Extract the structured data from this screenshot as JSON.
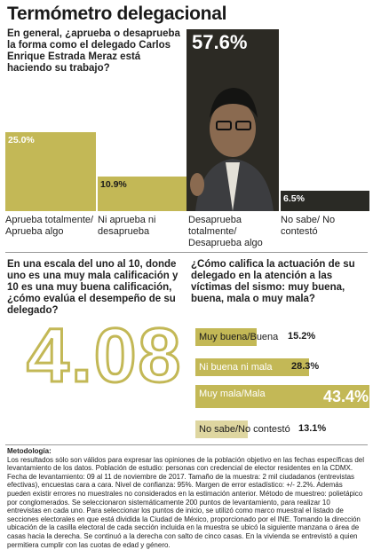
{
  "title": "Termómetro delegacional",
  "question1": "En general, ¿aprueba o desaprueba la forma como el delegado Carlos Enrique Estrada Meraz está haciendo su trabajo?",
  "question2": "En una escala del uno al 10, donde uno es una muy mala calificación y 10 es una muy buena calificación, ¿cómo evalúa el desempeño de su delegado?",
  "score": "4.08",
  "question3": "¿Cómo califica la actuación de su delegado en la atención a las víctimas del sismo: muy buena, buena, mala o muy mala?",
  "methodology_heading": "Metodología:",
  "methodology": "Los resultados sólo son válidos para expresar las opiniones de la población objetivo en las fechas específicas del levantamiento de los datos. Población de estudio: personas con credencial de elector residentes en la CDMX. Fecha de levantamiento: 09 al 11 de noviembre de 2017. Tamaño de la muestra: 2 mil ciudadanos (entrevistas efectivas), encuestas cara a cara. Nivel de confianza: 95%. Margen de error estadístico: +/- 2.2%. Además pueden existir errores no muestrales no considerados en la estimación anterior. Método de muestreo: polietápico por conglomerados. Se seleccionaron sistemáticamente 200 puntos de levantamiento, para realizar 10 entrevistas en cada uno. Para seleccionar los puntos de inicio, se utilizó como marco muestral el listado de secciones electorales en que está dividida la Ciudad de México, proporcionado por el INE. Tomando la dirección ubicación de la casilla electoral de cada sección incluida en la muestra se ubicó la siguiente manzana o área de casas hacia la derecha. Se continuó a la derecha con salto de cinco casas. En la vivienda se entrevistó a quien permitiera cumplir con las cuotas de edad y género.",
  "chart_data": [
    {
      "type": "bar",
      "categories": [
        "Aprueba totalmente/ Aprueba algo",
        "Ni aprueba ni desaprueba",
        "Desaprueba totalmente/ Desaprueba algo",
        "No sabe/ No contestó"
      ],
      "values": [
        25.0,
        10.9,
        57.6,
        6.5
      ],
      "value_labels": [
        "25.0%",
        "10.9%",
        "57.6%",
        "6.5%"
      ],
      "unit": "%",
      "colors": [
        "#c3b856",
        "#c3b856",
        "#2c2a24",
        "#2a2a25"
      ]
    },
    {
      "type": "bar",
      "orientation": "horizontal",
      "categories": [
        "Muy buena/Buena",
        "Ni buena ni mala",
        "Muy mala/Mala",
        "No sabe/No contestó"
      ],
      "values": [
        15.2,
        28.3,
        43.4,
        13.1
      ],
      "value_labels": [
        "15.2%",
        "28.3%",
        "43.4%",
        "13.1%"
      ],
      "unit": "%",
      "colors": [
        "#c3b856",
        "#c3b856",
        "#c3b856",
        "#ded6a0"
      ]
    }
  ]
}
